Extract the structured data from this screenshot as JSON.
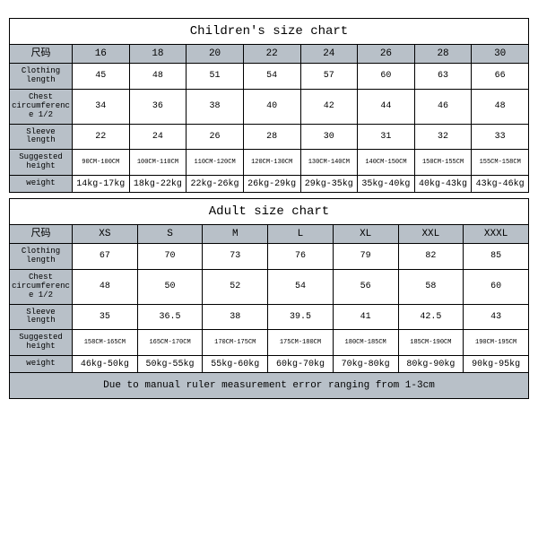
{
  "children": {
    "title": "Children's size chart",
    "header_label": "尺码",
    "sizes": [
      "16",
      "18",
      "20",
      "22",
      "24",
      "26",
      "28",
      "30"
    ],
    "rows": {
      "clothing_length": {
        "label": "Clothing length",
        "values": [
          "45",
          "48",
          "51",
          "54",
          "57",
          "60",
          "63",
          "66"
        ]
      },
      "chest": {
        "label": "Chest circumference 1/2",
        "values": [
          "34",
          "36",
          "38",
          "40",
          "42",
          "44",
          "46",
          "48"
        ]
      },
      "sleeve": {
        "label": "Sleeve length",
        "values": [
          "22",
          "24",
          "26",
          "28",
          "30",
          "31",
          "32",
          "33"
        ]
      },
      "height": {
        "label": "Suggested height",
        "values": [
          "90CM-100CM",
          "100CM-110CM",
          "110CM-120CM",
          "120CM-130CM",
          "130CM-140CM",
          "140CM-150CM",
          "150CM-155CM",
          "155CM-158CM"
        ]
      },
      "weight": {
        "label": "weight",
        "values": [
          "14kg-17kg",
          "18kg-22kg",
          "22kg-26kg",
          "26kg-29kg",
          "29kg-35kg",
          "35kg-40kg",
          "40kg-43kg",
          "43kg-46kg"
        ]
      }
    }
  },
  "adult": {
    "title": "Adult size chart",
    "header_label": "尺码",
    "sizes": [
      "XS",
      "S",
      "M",
      "L",
      "XL",
      "XXL",
      "XXXL"
    ],
    "rows": {
      "clothing_length": {
        "label": "Clothing length",
        "values": [
          "67",
          "70",
          "73",
          "76",
          "79",
          "82",
          "85"
        ]
      },
      "chest": {
        "label": "Chest circumference 1/2",
        "values": [
          "48",
          "50",
          "52",
          "54",
          "56",
          "58",
          "60"
        ]
      },
      "sleeve": {
        "label": "Sleeve length",
        "values": [
          "35",
          "36.5",
          "38",
          "39.5",
          "41",
          "42.5",
          "43"
        ]
      },
      "height": {
        "label": "Suggested height",
        "values": [
          "158CM-165CM",
          "165CM-170CM",
          "170CM-175CM",
          "175CM-180CM",
          "180CM-185CM",
          "185CM-190CM",
          "190CM-195CM"
        ]
      },
      "weight": {
        "label": "weight",
        "values": [
          "46kg-50kg",
          "50kg-55kg",
          "55kg-60kg",
          "60kg-70kg",
          "70kg-80kg",
          "80kg-90kg",
          "90kg-95kg"
        ]
      }
    },
    "note": "Due to manual ruler measurement error ranging from 1-3cm"
  },
  "style": {
    "header_bg": "#b8c0c8",
    "border_color": "#000000",
    "bg": "#ffffff",
    "font": "Courier New"
  }
}
